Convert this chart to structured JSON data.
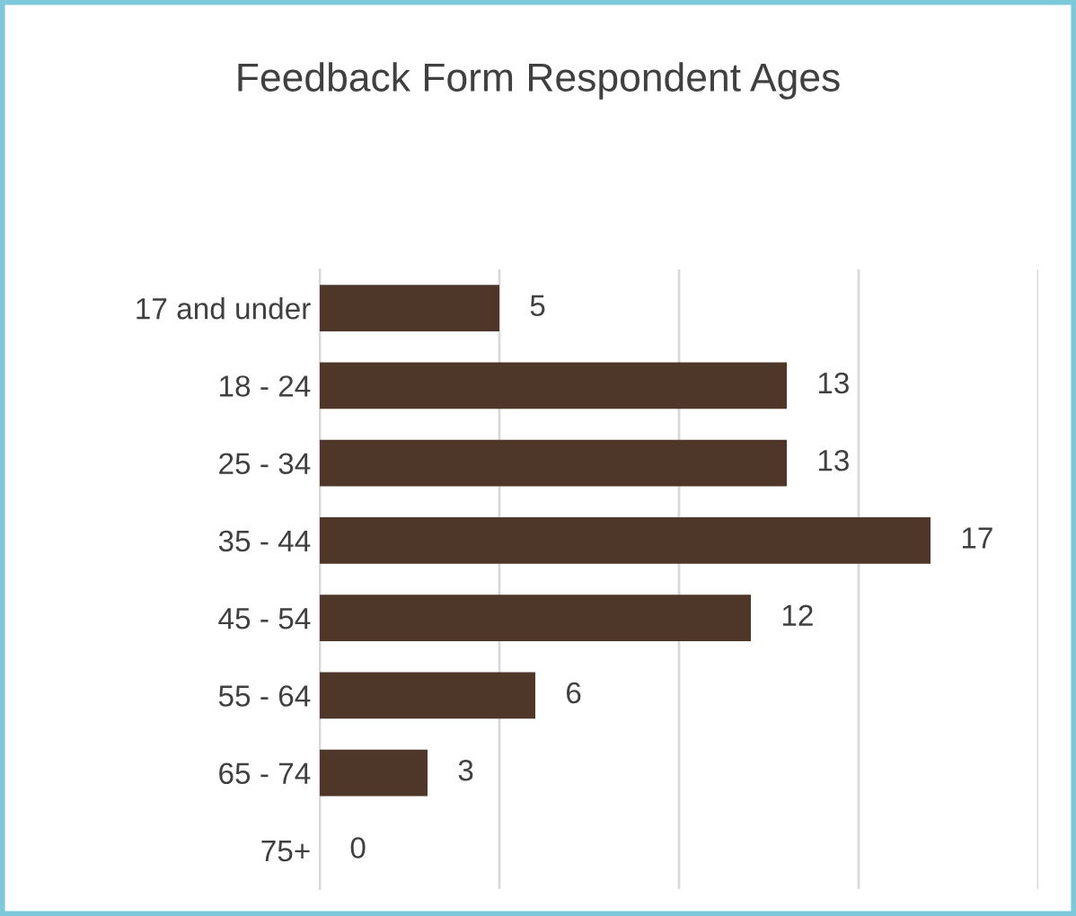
{
  "chart_data": {
    "type": "bar",
    "orientation": "horizontal",
    "title": "Feedback Form Respondent Ages",
    "categories": [
      "17 and under",
      "18 - 24",
      "25 - 34",
      "35 - 44",
      "45 - 54",
      "55 - 64",
      "65 - 74",
      "75+"
    ],
    "values": [
      5,
      13,
      13,
      17,
      12,
      6,
      3,
      0
    ],
    "color": "#4e3629",
    "xlim": [
      0,
      20
    ],
    "xticks": [
      {
        "value": 0,
        "label": null
      },
      {
        "value": 5,
        "label": null
      },
      {
        "value": 10,
        "label": null
      },
      {
        "value": 15,
        "label": null
      },
      {
        "value": 20,
        "label": null
      }
    ],
    "tick_labels": "y",
    "grid": "x",
    "data_labels": true,
    "legend": false
  }
}
